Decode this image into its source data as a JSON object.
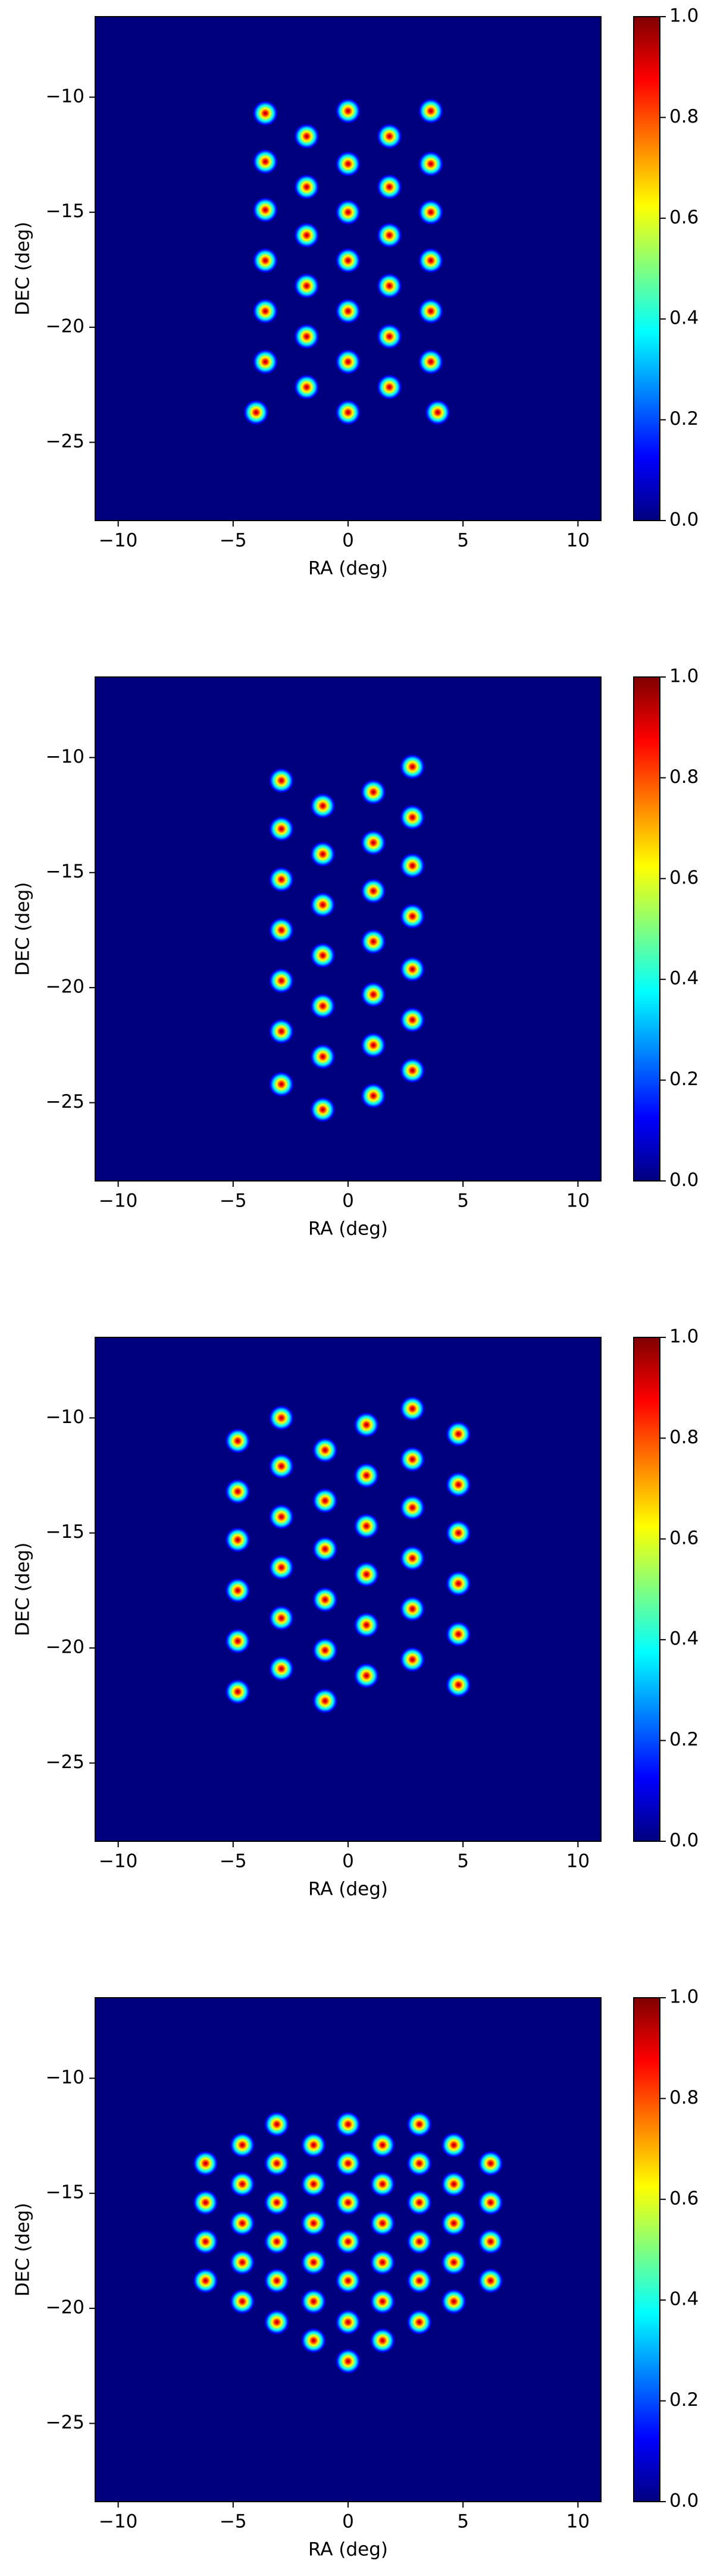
{
  "chart_data": [
    {
      "type": "scatter",
      "xlabel": "RA (deg)",
      "ylabel": "DEC (deg)",
      "colormap": "jet",
      "xlim": [
        -11,
        11
      ],
      "ylim": [
        -28.4,
        -6.5
      ],
      "xticks": [
        {
          "value": -10,
          "label": "−10"
        },
        {
          "value": -5,
          "label": "−5"
        },
        0,
        5,
        10
      ],
      "yticks": [
        {
          "value": -10,
          "label": "−10"
        },
        {
          "value": -15,
          "label": "−15"
        },
        {
          "value": -20,
          "label": "−20"
        },
        {
          "value": -25,
          "label": "−25"
        }
      ],
      "clim": [
        0,
        1
      ],
      "cticks": [
        {
          "value": 0,
          "label": "0.0"
        },
        0.2,
        0.4,
        0.6,
        0.8,
        {
          "value": 1,
          "label": "1.0"
        }
      ],
      "x": [
        -3.6,
        -3.6,
        -3.6,
        -3.6,
        -3.6,
        -3.6,
        -4.0,
        -1.8,
        -1.8,
        -1.8,
        -1.8,
        -1.8,
        -1.8,
        0,
        0,
        0,
        0,
        0,
        0,
        0,
        1.8,
        1.8,
        1.8,
        1.8,
        1.8,
        1.8,
        3.6,
        3.6,
        3.6,
        3.6,
        3.6,
        3.6,
        3.9
      ],
      "y": [
        -10.7,
        -12.8,
        -14.9,
        -17.1,
        -19.3,
        -21.5,
        -23.7,
        -11.7,
        -13.9,
        -16.0,
        -18.2,
        -20.4,
        -22.6,
        -10.6,
        -12.9,
        -15.0,
        -17.1,
        -19.3,
        -21.5,
        -23.7,
        -11.7,
        -13.9,
        -16.0,
        -18.2,
        -20.4,
        -22.6,
        -10.6,
        -12.9,
        -15.0,
        -17.1,
        -19.3,
        -21.5,
        -23.7
      ]
    },
    {
      "type": "scatter",
      "xlabel": "RA (deg)",
      "ylabel": "DEC (deg)",
      "colormap": "jet",
      "xlim": [
        -11,
        11
      ],
      "ylim": [
        -28.4,
        -6.5
      ],
      "xticks": [
        {
          "value": -10,
          "label": "−10"
        },
        {
          "value": -5,
          "label": "−5"
        },
        0,
        5,
        10
      ],
      "yticks": [
        {
          "value": -10,
          "label": "−10"
        },
        {
          "value": -15,
          "label": "−15"
        },
        {
          "value": -20,
          "label": "−20"
        },
        {
          "value": -25,
          "label": "−25"
        }
      ],
      "clim": [
        0,
        1
      ],
      "cticks": [
        {
          "value": 0,
          "label": "0.0"
        },
        0.2,
        0.4,
        0.6,
        0.8,
        {
          "value": 1,
          "label": "1.0"
        }
      ],
      "x": [
        -2.9,
        -2.9,
        -2.9,
        -2.9,
        -2.9,
        -2.9,
        -2.9,
        -1.1,
        -1.1,
        -1.1,
        -1.1,
        -1.1,
        -1.1,
        -1.1,
        1.1,
        1.1,
        1.1,
        1.1,
        1.1,
        1.1,
        1.1,
        2.8,
        2.8,
        2.8,
        2.8,
        2.8,
        2.8,
        2.8
      ],
      "y": [
        -11.0,
        -13.1,
        -15.3,
        -17.5,
        -19.7,
        -21.9,
        -24.2,
        -12.1,
        -14.2,
        -16.4,
        -18.6,
        -20.8,
        -23.0,
        -25.3,
        -11.5,
        -13.7,
        -15.8,
        -18.0,
        -20.3,
        -22.5,
        -24.7,
        -10.4,
        -12.6,
        -14.7,
        -16.9,
        -19.2,
        -21.4,
        -23.6
      ]
    },
    {
      "type": "scatter",
      "xlabel": "RA (deg)",
      "ylabel": "DEC (deg)",
      "colormap": "jet",
      "xlim": [
        -11,
        11
      ],
      "ylim": [
        -28.4,
        -6.5
      ],
      "xticks": [
        {
          "value": -10,
          "label": "−10"
        },
        {
          "value": -5,
          "label": "−5"
        },
        0,
        5,
        10
      ],
      "yticks": [
        {
          "value": -10,
          "label": "−10"
        },
        {
          "value": -15,
          "label": "−15"
        },
        {
          "value": -20,
          "label": "−20"
        },
        {
          "value": -25,
          "label": "−25"
        }
      ],
      "clim": [
        0,
        1
      ],
      "cticks": [
        {
          "value": 0,
          "label": "0.0"
        },
        0.2,
        0.4,
        0.6,
        0.8,
        {
          "value": 1,
          "label": "1.0"
        }
      ],
      "x": [
        -4.8,
        -4.8,
        -4.8,
        -4.8,
        -4.8,
        -4.8,
        -2.9,
        -2.9,
        -2.9,
        -2.9,
        -2.9,
        -2.9,
        -1.0,
        -1.0,
        -1.0,
        -1.0,
        -1.0,
        -1.0,
        0.8,
        0.8,
        0.8,
        0.8,
        0.8,
        0.8,
        2.8,
        2.8,
        2.8,
        2.8,
        2.8,
        2.8,
        4.8,
        4.8,
        4.8,
        4.8,
        4.8,
        4.8
      ],
      "y": [
        -11.0,
        -13.2,
        -15.3,
        -17.5,
        -19.7,
        -21.9,
        -10.0,
        -12.1,
        -14.3,
        -16.5,
        -18.7,
        -20.9,
        -11.4,
        -13.6,
        -15.7,
        -17.9,
        -20.1,
        -22.3,
        -10.3,
        -12.5,
        -14.7,
        -16.8,
        -19.0,
        -21.2,
        -9.6,
        -11.8,
        -13.9,
        -16.1,
        -18.3,
        -20.5,
        -10.7,
        -12.9,
        -15.0,
        -17.2,
        -19.4,
        -21.6
      ]
    },
    {
      "type": "scatter",
      "xlabel": "RA (deg)",
      "ylabel": "DEC (deg)",
      "colormap": "jet",
      "xlim": [
        -11,
        11
      ],
      "ylim": [
        -28.4,
        -6.5
      ],
      "xticks": [
        {
          "value": -10,
          "label": "−10"
        },
        {
          "value": -5,
          "label": "−5"
        },
        0,
        5,
        10
      ],
      "yticks": [
        {
          "value": -10,
          "label": "−10"
        },
        {
          "value": -15,
          "label": "−15"
        },
        {
          "value": -20,
          "label": "−20"
        },
        {
          "value": -25,
          "label": "−25"
        }
      ],
      "clim": [
        0,
        1
      ],
      "cticks": [
        {
          "value": 0,
          "label": "0.0"
        },
        0.2,
        0.4,
        0.6,
        0.8,
        {
          "value": 1,
          "label": "1.0"
        }
      ],
      "x": [
        -3.1,
        0,
        3.1,
        -4.6,
        -1.5,
        1.5,
        4.6,
        -6.2,
        -3.1,
        0,
        3.1,
        6.2,
        -4.6,
        -1.5,
        1.5,
        4.6,
        -6.2,
        -3.1,
        0,
        3.1,
        6.2,
        -4.6,
        -1.5,
        1.5,
        4.6,
        -6.2,
        -3.1,
        0,
        3.1,
        6.2,
        -4.6,
        -1.5,
        1.5,
        4.6,
        -6.2,
        -3.1,
        0,
        3.1,
        6.2,
        -4.6,
        -1.5,
        1.5,
        4.6,
        -3.1,
        0,
        3.1,
        -1.5,
        1.5,
        0
      ],
      "y": [
        -12.0,
        -12.0,
        -12.0,
        -12.9,
        -12.9,
        -12.9,
        -12.9,
        -13.7,
        -13.7,
        -13.7,
        -13.7,
        -13.7,
        -14.6,
        -14.6,
        -14.6,
        -14.6,
        -15.4,
        -15.4,
        -15.4,
        -15.4,
        -15.4,
        -16.3,
        -16.3,
        -16.3,
        -16.3,
        -17.1,
        -17.1,
        -17.1,
        -17.1,
        -17.1,
        -18.0,
        -18.0,
        -18.0,
        -18.0,
        -18.8,
        -18.8,
        -18.8,
        -18.8,
        -18.8,
        -19.7,
        -19.7,
        -19.7,
        -19.7,
        -20.6,
        -20.6,
        -20.6,
        -21.4,
        -21.4,
        -22.3
      ]
    }
  ]
}
